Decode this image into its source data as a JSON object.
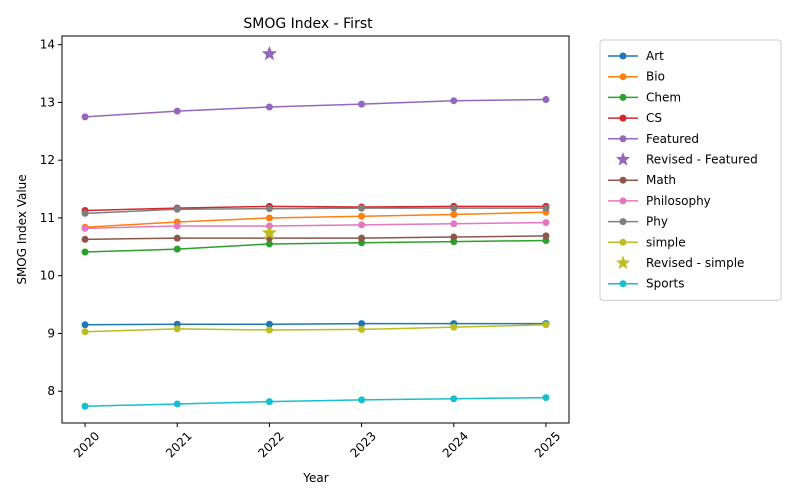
{
  "chart_data": {
    "type": "line",
    "title": "SMOG Index - First",
    "xlabel": "Year",
    "ylabel": "SMOG Index Value",
    "x": [
      2020,
      2021,
      2022,
      2023,
      2024,
      2025
    ],
    "x_tick_labels": [
      "2020",
      "2021",
      "2022",
      "2023",
      "2024",
      "2025"
    ],
    "y_ticks": [
      8,
      9,
      10,
      11,
      12,
      13,
      14
    ],
    "y_tick_labels": [
      "8",
      "9",
      "10",
      "11",
      "12",
      "13",
      "14"
    ],
    "xlim": [
      2019.75,
      2025.25
    ],
    "ylim": [
      7.45,
      14.15
    ],
    "grid": false,
    "legend_position": "outside-right",
    "series": [
      {
        "name": "Art",
        "color": "#1f77b4",
        "marker": "circle",
        "values": [
          9.15,
          9.16,
          9.16,
          9.17,
          9.17,
          9.17
        ]
      },
      {
        "name": "Bio",
        "color": "#ff7f0e",
        "marker": "circle",
        "values": [
          10.84,
          10.93,
          11.0,
          11.03,
          11.06,
          11.1
        ]
      },
      {
        "name": "Chem",
        "color": "#2ca02c",
        "marker": "circle",
        "values": [
          10.41,
          10.46,
          10.55,
          10.57,
          10.59,
          10.61
        ]
      },
      {
        "name": "CS",
        "color": "#d62728",
        "marker": "circle",
        "values": [
          11.13,
          11.17,
          11.2,
          11.19,
          11.2,
          11.2
        ]
      },
      {
        "name": "Featured",
        "color": "#9467bd",
        "marker": "circle",
        "values": [
          12.75,
          12.85,
          12.92,
          12.97,
          13.03,
          13.05
        ]
      },
      {
        "name": "Revised - Featured",
        "color": "#9467bd",
        "marker": "star",
        "points": [
          {
            "x": 2022,
            "y": 13.84
          }
        ]
      },
      {
        "name": "Math",
        "color": "#8c564b",
        "marker": "circle",
        "values": [
          10.63,
          10.65,
          10.65,
          10.65,
          10.67,
          10.69
        ]
      },
      {
        "name": "Philosophy",
        "color": "#e377c2",
        "marker": "circle",
        "values": [
          10.82,
          10.86,
          10.86,
          10.88,
          10.9,
          10.92
        ]
      },
      {
        "name": "Phy",
        "color": "#7f7f7f",
        "marker": "circle",
        "values": [
          11.08,
          11.15,
          11.16,
          11.17,
          11.17,
          11.17
        ]
      },
      {
        "name": "simple",
        "color": "#bcbd22",
        "marker": "circle",
        "values": [
          9.03,
          9.08,
          9.06,
          9.07,
          9.11,
          9.15
        ]
      },
      {
        "name": "Revised - simple",
        "color": "#bcbd22",
        "marker": "star",
        "points": [
          {
            "x": 2022,
            "y": 10.74
          }
        ]
      },
      {
        "name": "Sports",
        "color": "#17becf",
        "marker": "circle",
        "values": [
          7.74,
          7.78,
          7.82,
          7.85,
          7.87,
          7.89
        ]
      }
    ]
  }
}
